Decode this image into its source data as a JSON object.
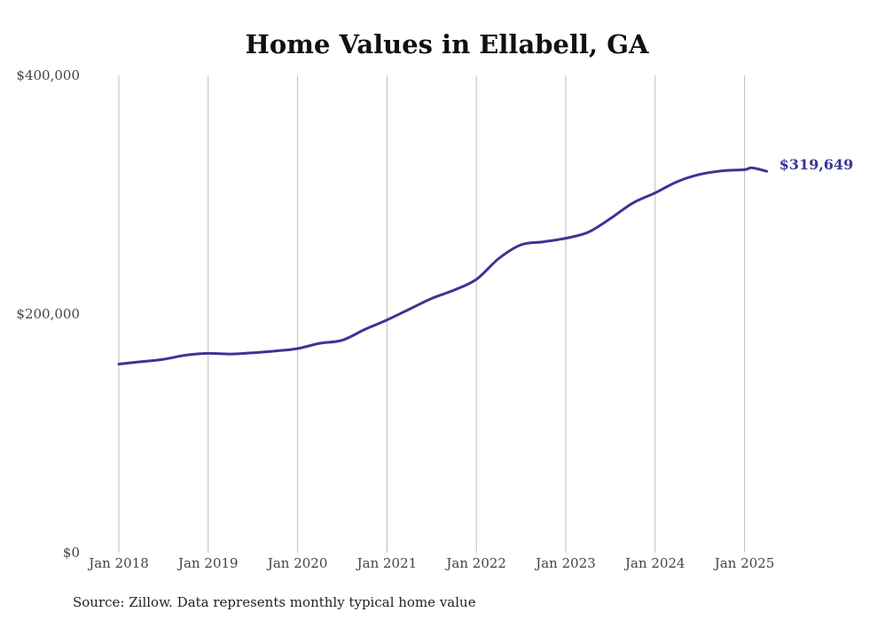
{
  "chart_data": {
    "type": "line",
    "title": "Home Values in Ellabell, GA",
    "xlabel": "",
    "ylabel": "",
    "x_tick_labels": [
      "Jan 2018",
      "Jan 2019",
      "Jan 2020",
      "Jan 2021",
      "Jan 2022",
      "Jan 2023",
      "Jan 2024",
      "Jan 2025"
    ],
    "y_tick_labels": [
      "$0",
      "$200,000",
      "$400,000"
    ],
    "ylim": [
      0,
      400000
    ],
    "xlim": [
      "2018-01",
      "2025-04"
    ],
    "grid": "vertical lines at each January",
    "legend": "none",
    "line_color": "#3a3596",
    "series": [
      {
        "x": [
          "2018-01",
          "2018-04",
          "2018-07",
          "2018-10",
          "2019-01",
          "2019-04",
          "2019-07",
          "2019-10",
          "2020-01",
          "2020-04",
          "2020-07",
          "2020-10",
          "2021-01",
          "2021-04",
          "2021-07",
          "2021-10",
          "2022-01",
          "2022-04",
          "2022-07",
          "2022-10",
          "2023-01",
          "2023-04",
          "2023-07",
          "2023-10",
          "2024-01",
          "2024-04",
          "2024-07",
          "2024-10",
          "2025-01",
          "2025-02",
          "2025-04"
        ],
        "values": [
          158000,
          160000,
          162000,
          165500,
          167000,
          166500,
          167500,
          169000,
          171000,
          175500,
          178000,
          187000,
          195000,
          204000,
          213000,
          220000,
          229000,
          246500,
          258000,
          260500,
          263500,
          268500,
          280000,
          293000,
          301500,
          311000,
          317000,
          320000,
          321000,
          322500,
          319649
        ]
      }
    ],
    "end_label": "$319,649",
    "source": "Source: Zillow. Data represents monthly typical home value"
  }
}
